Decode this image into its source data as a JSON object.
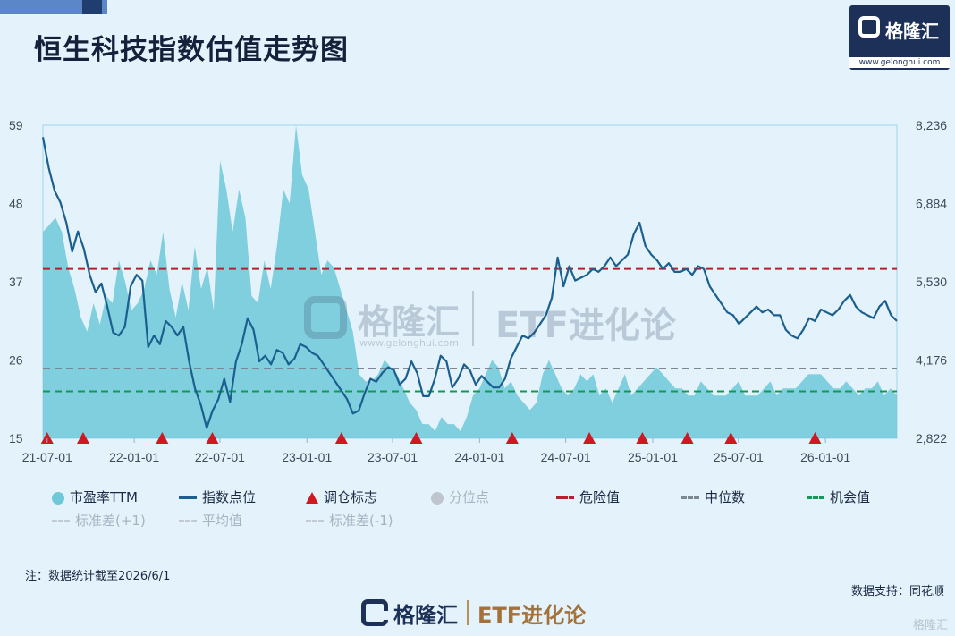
{
  "title": "恒生科技指数估值走势图",
  "brand": {
    "name": "格隆汇",
    "url": "www.gelonghui.com",
    "etf": "ETF进化论",
    "small_mark": "格隆汇"
  },
  "note": "注：数据统计截至2026/6/1",
  "source": "数据支持：同花顺",
  "legend": {
    "pe": "市盈率TTM",
    "index": "指数点位",
    "signal": "调仓标志",
    "quantile": "分位点",
    "danger": "危险值",
    "median": "中位数",
    "opportunity": "机会值",
    "std_plus": "标准差(+1)",
    "mean": "平均值",
    "std_minus": "标准差(-1)"
  },
  "chart_data": {
    "type": "area",
    "x_tick_labels": [
      "21-07-01",
      "22-01-01",
      "22-07-01",
      "23-01-01",
      "23-07-01",
      "24-01-01",
      "24-07-01",
      "25-01-01",
      "25-07-01",
      "26-01-01"
    ],
    "x_range": [
      "2021-06-22",
      "2026-06-01"
    ],
    "y_left": {
      "label": "市盈率TTM",
      "ticks": [
        15,
        26,
        37,
        48,
        59
      ],
      "range": [
        15,
        59
      ]
    },
    "y_right": {
      "label": "指数点位",
      "tick_labels": [
        "2,822",
        "4,176",
        "5,530",
        "6,884",
        "8,236"
      ],
      "range": [
        2822,
        8236
      ]
    },
    "colors": {
      "pe_fill": "#6fc8d8",
      "index_line": "#1b5f8f",
      "danger": "#b2222e",
      "median": "#7d8794",
      "opportunity": "#119a55",
      "signal": "#d11820"
    },
    "reference_lines": {
      "danger": 38.8,
      "median": 24.8,
      "opportunity": 21.6
    },
    "series": [
      {
        "name": "市盈率TTM",
        "kind": "area",
        "values": [
          44,
          45,
          46,
          44,
          39,
          36,
          32,
          30,
          34,
          31,
          35,
          34,
          40,
          37,
          33,
          34,
          36,
          40,
          38,
          44,
          36,
          32,
          37,
          33,
          42,
          36,
          39,
          33,
          54,
          50,
          44,
          50,
          46,
          35,
          34,
          40,
          36,
          42,
          50,
          48,
          59,
          52,
          50,
          44,
          38,
          40,
          39,
          36,
          33,
          30,
          24,
          23,
          23,
          24,
          26,
          25,
          24,
          22,
          20,
          19,
          17,
          17,
          16,
          18,
          17,
          17,
          16,
          18,
          21,
          22,
          24,
          26,
          25,
          22,
          23,
          21,
          20,
          19,
          20,
          24,
          26,
          24,
          22,
          21,
          22,
          24,
          23,
          24,
          21,
          22,
          20,
          22,
          24,
          21,
          22,
          23,
          24,
          25,
          24,
          23,
          22,
          22,
          21,
          21,
          23,
          22,
          21,
          21,
          21,
          22,
          23,
          21,
          21,
          21,
          22,
          23,
          21,
          22,
          22,
          22,
          23,
          24,
          24,
          24,
          23,
          22,
          22,
          23,
          22,
          21,
          22,
          22,
          23,
          21,
          22,
          21
        ]
      },
      {
        "name": "指数点位",
        "kind": "line",
        "values": [
          8030,
          7500,
          7100,
          6900,
          6550,
          6050,
          6400,
          6100,
          5650,
          5350,
          5500,
          5100,
          4650,
          4600,
          4750,
          5450,
          5650,
          5550,
          4400,
          4600,
          4450,
          4850,
          4750,
          4600,
          4750,
          4150,
          3680,
          3400,
          3000,
          3300,
          3500,
          3850,
          3450,
          4150,
          4450,
          4900,
          4700,
          4150,
          4250,
          4100,
          4350,
          4300,
          4100,
          4200,
          4450,
          4400,
          4300,
          4250,
          4100,
          3950,
          3800,
          3650,
          3500,
          3250,
          3300,
          3600,
          3850,
          3800,
          3950,
          4050,
          4000,
          3750,
          3850,
          4150,
          3950,
          3550,
          3550,
          3850,
          4250,
          4150,
          3700,
          3850,
          4100,
          4000,
          3750,
          3900,
          3800,
          3700,
          3700,
          3850,
          4200,
          4400,
          4600,
          4550,
          4650,
          4800,
          4950,
          5250,
          5950,
          5450,
          5800,
          5550,
          5600,
          5650,
          5750,
          5700,
          5800,
          5950,
          5800,
          5900,
          6000,
          6350,
          6550,
          6150,
          6000,
          5900,
          5750,
          5850,
          5700,
          5700,
          5750,
          5650,
          5800,
          5750,
          5450,
          5300,
          5150,
          5000,
          4950,
          4800,
          4900,
          5000,
          5100,
          5000,
          5050,
          4950,
          4950,
          4700,
          4600,
          4550,
          4700,
          4900,
          4850,
          5050,
          5000,
          4950,
          5050,
          5200,
          5300,
          5100,
          5000,
          4950,
          4900,
          5100,
          5200,
          4950,
          4850
        ]
      }
    ],
    "signals": [
      "2021-07-01",
      "2021-09-15",
      "2022-03-01",
      "2022-06-15",
      "2023-03-15",
      "2023-08-20",
      "2024-03-10",
      "2024-08-20",
      "2024-12-10",
      "2025-03-15",
      "2025-06-15",
      "2025-12-10"
    ]
  }
}
